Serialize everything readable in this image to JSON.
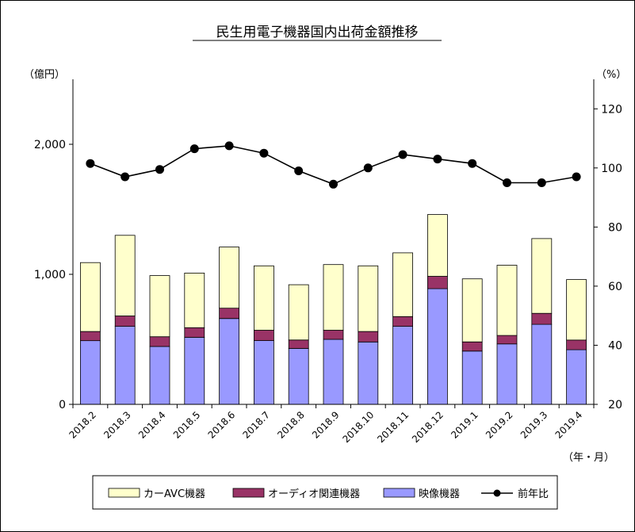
{
  "chart_data": {
    "type": "bar",
    "title": "民生用電子機器国内出荷金額推移",
    "left_unit": "（億円）",
    "right_unit": "（%）",
    "x_unit": "（年・月）",
    "categories": [
      "2018.2",
      "2018.3",
      "2018.4",
      "2018.5",
      "2018.6",
      "2018.7",
      "2018.8",
      "2018.9",
      "2018.10",
      "2018.11",
      "2018.12",
      "2019.1",
      "2019.2",
      "2019.3",
      "2019.4"
    ],
    "stacked": true,
    "series": [
      {
        "name": "映像機器",
        "axis": "left",
        "color": "#9999ff",
        "values": [
          490,
          600,
          445,
          515,
          660,
          490,
          430,
          500,
          480,
          600,
          890,
          410,
          465,
          615,
          420
        ]
      },
      {
        "name": "オーディオ関連機器",
        "axis": "left",
        "color": "#993366",
        "values": [
          70,
          80,
          75,
          75,
          80,
          80,
          65,
          70,
          80,
          75,
          95,
          70,
          65,
          85,
          75
        ]
      },
      {
        "name": "カーAVC機器",
        "axis": "left",
        "color": "#ffffcc",
        "values": [
          530,
          620,
          470,
          420,
          470,
          495,
          425,
          505,
          505,
          490,
          475,
          485,
          540,
          575,
          465
        ]
      },
      {
        "name": "前年比",
        "axis": "right",
        "type": "line",
        "color": "#000000",
        "values": [
          101.5,
          97,
          99.5,
          106.5,
          107.5,
          105,
          99,
          94.5,
          100,
          104.5,
          103,
          101.5,
          95,
          95,
          97
        ]
      }
    ],
    "left_axis": {
      "ylim": [
        0,
        2500
      ],
      "ticks": [
        0,
        1000,
        2000
      ],
      "tick_labels": [
        "0",
        "1,000",
        "2,000"
      ]
    },
    "right_axis": {
      "ylim": [
        20,
        130
      ],
      "ticks": [
        20,
        40,
        60,
        80,
        100,
        120
      ],
      "tick_labels": [
        "20",
        "40",
        "60",
        "80",
        "100",
        "120"
      ]
    },
    "legend": {
      "position": "bottom",
      "entries": [
        "カーAVC機器",
        "オーディオ関連機器",
        "映像機器",
        "前年比"
      ]
    },
    "grid": false
  }
}
